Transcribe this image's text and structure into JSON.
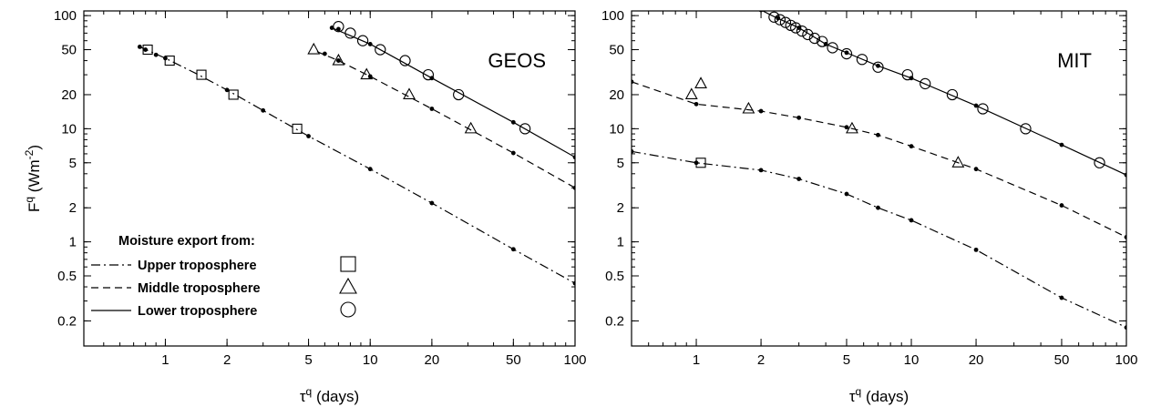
{
  "chart_data": [
    {
      "type": "line",
      "title": "GEOS",
      "xlabel": "τ^q (days)",
      "ylabel": "F^q (Wm^-2)",
      "xscale": "log",
      "yscale": "log",
      "xlim": [
        0.4,
        100
      ],
      "ylim": [
        0.12,
        110
      ],
      "xticks": [
        1,
        2,
        5,
        10,
        20,
        50,
        100
      ],
      "yticks": [
        0.2,
        0.5,
        1,
        2,
        5,
        10,
        20,
        50,
        100
      ],
      "legend": {
        "title": "Moisture export from:",
        "placement": "bottom-left",
        "entries": [
          "Upper troposphere",
          "Middle troposphere",
          "Lower troposphere"
        ]
      },
      "series": [
        {
          "name": "Upper troposphere",
          "linestyle": "dash-dot",
          "marker": "square",
          "curve": [
            [
              0.75,
              53
            ],
            [
              1.0,
              42
            ],
            [
              1.4,
              31
            ],
            [
              2.0,
              22
            ],
            [
              3.0,
              14.5
            ],
            [
              5.0,
              8.6
            ],
            [
              10,
              4.4
            ],
            [
              20,
              2.2
            ],
            [
              50,
              0.86
            ],
            [
              100,
              0.43
            ]
          ],
          "dots": [
            [
              0.75,
              53
            ],
            [
              0.8,
              50
            ],
            [
              0.9,
              45
            ],
            [
              1.0,
              42
            ],
            [
              2.0,
              22
            ],
            [
              3.0,
              14.5
            ],
            [
              5.0,
              8.6
            ],
            [
              10,
              4.4
            ],
            [
              20,
              2.2
            ],
            [
              50,
              0.86
            ],
            [
              100,
              0.43
            ]
          ],
          "markers": [
            [
              0.82,
              50
            ],
            [
              1.05,
              40
            ],
            [
              1.5,
              30
            ],
            [
              2.15,
              20
            ],
            [
              4.4,
              10
            ]
          ]
        },
        {
          "name": "Middle troposphere",
          "linestyle": "dashed",
          "marker": "triangle",
          "curve": [
            [
              5.5,
              48
            ],
            [
              7.0,
              40
            ],
            [
              10,
              29
            ],
            [
              20,
              15
            ],
            [
              50,
              6.1
            ],
            [
              100,
              3.0
            ]
          ],
          "dots": [
            [
              6.0,
              46
            ],
            [
              7.0,
              40
            ],
            [
              10,
              29
            ],
            [
              20,
              15
            ],
            [
              50,
              6.1
            ],
            [
              100,
              3.0
            ]
          ],
          "markers": [
            [
              5.3,
              50
            ],
            [
              7.0,
              40
            ],
            [
              9.6,
              30
            ],
            [
              15.5,
              20
            ],
            [
              31,
              10
            ]
          ]
        },
        {
          "name": "Lower troposphere",
          "linestyle": "solid",
          "marker": "circle",
          "curve": [
            [
              6.5,
              78
            ],
            [
              10,
              56
            ],
            [
              20,
              28
            ],
            [
              50,
              11.4
            ],
            [
              100,
              5.6
            ]
          ],
          "dots": [
            [
              6.5,
              78
            ],
            [
              7.0,
              76
            ],
            [
              10,
              56
            ],
            [
              20,
              28
            ],
            [
              50,
              11.4
            ],
            [
              100,
              5.6
            ]
          ],
          "markers": [
            [
              7.0,
              80
            ],
            [
              8.0,
              70
            ],
            [
              9.2,
              60
            ],
            [
              11.2,
              50
            ],
            [
              14.8,
              40
            ],
            [
              19.2,
              30
            ],
            [
              27,
              20
            ],
            [
              57,
              10
            ]
          ]
        }
      ]
    },
    {
      "type": "line",
      "title": "MIT",
      "xlabel": "τ^q (days)",
      "ylabel": "",
      "xscale": "log",
      "yscale": "log",
      "xlim": [
        0.5,
        100
      ],
      "ylim": [
        0.12,
        110
      ],
      "xticks": [
        1,
        2,
        5,
        10,
        20,
        50,
        100
      ],
      "yticks": [
        0.2,
        0.5,
        1,
        2,
        5,
        10,
        20,
        50,
        100
      ],
      "series": [
        {
          "name": "Upper troposphere",
          "linestyle": "dash-dot",
          "marker": "square",
          "curve": [
            [
              0.5,
              6.3
            ],
            [
              1.0,
              5.0
            ],
            [
              2.0,
              4.3
            ],
            [
              3.0,
              3.6
            ],
            [
              5.0,
              2.65
            ],
            [
              7.0,
              2.0
            ],
            [
              10,
              1.55
            ],
            [
              20,
              0.85
            ],
            [
              50,
              0.32
            ],
            [
              100,
              0.175
            ]
          ],
          "dots": [
            [
              0.5,
              6.3
            ],
            [
              1.0,
              5.0
            ],
            [
              2.0,
              4.3
            ],
            [
              3.0,
              3.6
            ],
            [
              5.0,
              2.65
            ],
            [
              7.0,
              2.0
            ],
            [
              10,
              1.55
            ],
            [
              20,
              0.85
            ],
            [
              50,
              0.32
            ],
            [
              100,
              0.175
            ]
          ],
          "markers": [
            [
              1.05,
              5.0
            ]
          ]
        },
        {
          "name": "Middle troposphere",
          "linestyle": "dashed",
          "marker": "triangle",
          "curve": [
            [
              0.5,
              26
            ],
            [
              1.0,
              16.5
            ],
            [
              2.0,
              14.3
            ],
            [
              3.0,
              12.5
            ],
            [
              5.0,
              10.3
            ],
            [
              7.0,
              8.8
            ],
            [
              10,
              7.0
            ],
            [
              20,
              4.4
            ],
            [
              50,
              2.1
            ],
            [
              100,
              1.1
            ]
          ],
          "dots": [
            [
              0.5,
              26
            ],
            [
              1.0,
              16.5
            ],
            [
              2.0,
              14.3
            ],
            [
              3.0,
              12.5
            ],
            [
              5.0,
              10.3
            ],
            [
              7.0,
              8.8
            ],
            [
              10,
              7.0
            ],
            [
              20,
              4.4
            ],
            [
              50,
              2.1
            ],
            [
              100,
              1.1
            ]
          ],
          "markers": [
            [
              0.95,
              20
            ],
            [
              1.05,
              25
            ],
            [
              1.75,
              15
            ],
            [
              5.3,
              10
            ],
            [
              16.5,
              5
            ]
          ]
        },
        {
          "name": "Lower troposphere",
          "linestyle": "solid",
          "marker": "circle",
          "curve": [
            [
              2.0,
              112
            ],
            [
              2.3,
              98
            ],
            [
              3.0,
              78
            ],
            [
              4.0,
              56
            ],
            [
              5.0,
              47
            ],
            [
              7.0,
              36
            ],
            [
              10,
              28
            ],
            [
              20,
              16
            ],
            [
              50,
              7.2
            ],
            [
              100,
              3.9
            ]
          ],
          "dots": [
            [
              2.0,
              112
            ],
            [
              2.4,
              95
            ],
            [
              3.0,
              78
            ],
            [
              4.0,
              56
            ],
            [
              5.0,
              47
            ],
            [
              7.0,
              36
            ],
            [
              10,
              28
            ],
            [
              20,
              16
            ],
            [
              50,
              7.2
            ],
            [
              100,
              3.9
            ]
          ],
          "markers": [
            [
              2.3,
              97
            ],
            [
              2.45,
              92
            ],
            [
              2.6,
              87
            ],
            [
              2.75,
              82
            ],
            [
              2.9,
              78
            ],
            [
              3.1,
              73
            ],
            [
              3.3,
              68
            ],
            [
              3.55,
              63
            ],
            [
              3.85,
              59
            ],
            [
              4.3,
              52
            ],
            [
              5.0,
              46
            ],
            [
              5.9,
              41
            ],
            [
              7.0,
              35
            ],
            [
              9.6,
              30
            ],
            [
              11.6,
              25
            ],
            [
              15.5,
              20
            ],
            [
              21.5,
              15
            ],
            [
              34,
              10
            ],
            [
              75,
              5
            ]
          ]
        }
      ]
    }
  ]
}
